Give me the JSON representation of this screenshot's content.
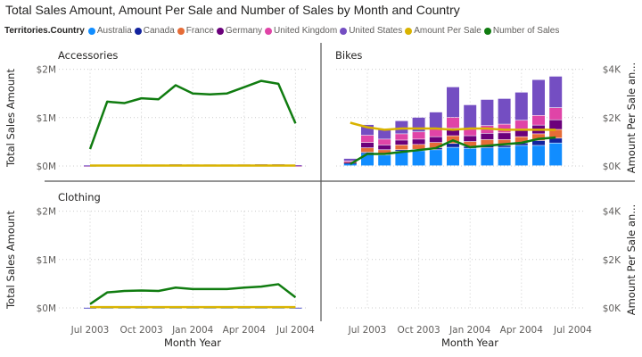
{
  "chart_data": {
    "type": "bar",
    "title": "Total Sales Amount, Amount Per Sale and Number of Sales by Month and Country",
    "legend_title": "Territories.Country",
    "legend_placement": "top-left",
    "legend": [
      {
        "name": "Australia",
        "color": "#118DFF"
      },
      {
        "name": "Canada",
        "color": "#12239E"
      },
      {
        "name": "France",
        "color": "#E66C37"
      },
      {
        "name": "Germany",
        "color": "#6B007B"
      },
      {
        "name": "United Kingdom",
        "color": "#E044A7"
      },
      {
        "name": "United States",
        "color": "#744EC2"
      },
      {
        "name": "Amount Per Sale",
        "color": "#D9B300"
      },
      {
        "name": "Number of Sales",
        "color": "#107C10"
      }
    ],
    "xlabel": "Month Year",
    "ylabel_left": "Total Sales Amount",
    "ylabel_right": "Amount Per Sale an...",
    "x_ticks": [
      "Jul 2003",
      "Oct 2003",
      "Jan 2004",
      "Apr 2004",
      "Jul 2004"
    ],
    "y_left_ticks": [
      "$0M",
      "$1M",
      "$2M"
    ],
    "y_left_range": [
      0,
      2
    ],
    "y_right_ticks": [
      "$0K",
      "$2K",
      "$4K"
    ],
    "y_right_range": [
      0,
      4
    ],
    "grid": true,
    "months": [
      "Jun 2003",
      "Jul 2003",
      "Aug 2003",
      "Sep 2003",
      "Oct 2003",
      "Nov 2003",
      "Dec 2003",
      "Jan 2004",
      "Feb 2004",
      "Mar 2004",
      "Apr 2004",
      "May 2004",
      "Jun 2004",
      "Jul 2004"
    ],
    "panels": [
      {
        "title": "Accessories",
        "months": [
          "Jul 2003",
          "Aug 2003",
          "Sep 2003",
          "Oct 2003",
          "Nov 2003",
          "Dec 2003",
          "Jan 2004",
          "Feb 2004",
          "Mar 2004",
          "Apr 2004",
          "May 2004",
          "Jun 2004",
          "Jul 2004"
        ],
        "sales_by_country_M": {
          "Australia": [
            0.004,
            0.008,
            0.008,
            0.008,
            0.008,
            0.009,
            0.008,
            0.008,
            0.008,
            0.008,
            0.009,
            0.009,
            0.005
          ],
          "Canada": [
            0.001,
            0.002,
            0.002,
            0.002,
            0.002,
            0.002,
            0.002,
            0.002,
            0.002,
            0.002,
            0.002,
            0.002,
            0.001
          ],
          "France": [
            0.001,
            0.002,
            0.002,
            0.002,
            0.002,
            0.003,
            0.002,
            0.002,
            0.002,
            0.002,
            0.003,
            0.003,
            0.001
          ],
          "Germany": [
            0.001,
            0.002,
            0.002,
            0.002,
            0.002,
            0.003,
            0.002,
            0.002,
            0.002,
            0.002,
            0.003,
            0.003,
            0.001
          ],
          "United Kingdom": [
            0.001,
            0.002,
            0.002,
            0.002,
            0.002,
            0.003,
            0.002,
            0.002,
            0.002,
            0.002,
            0.003,
            0.003,
            0.001
          ],
          "United States": [
            0.005,
            0.012,
            0.012,
            0.013,
            0.013,
            0.015,
            0.014,
            0.014,
            0.014,
            0.015,
            0.016,
            0.016,
            0.008
          ]
        },
        "amount_per_sale_K": [
          0.02,
          0.02,
          0.02,
          0.02,
          0.02,
          0.02,
          0.02,
          0.02,
          0.02,
          0.02,
          0.02,
          0.02,
          0.02
        ],
        "number_of_sales": [
          0.35,
          1.33,
          1.3,
          1.4,
          1.38,
          1.67,
          1.5,
          1.48,
          1.5,
          1.63,
          1.76,
          1.7,
          0.88
        ]
      },
      {
        "title": "Bikes",
        "months": [
          "Jun 2003",
          "Jul 2003",
          "Aug 2003",
          "Sep 2003",
          "Oct 2003",
          "Nov 2003",
          "Dec 2003",
          "Jan 2004",
          "Feb 2004",
          "Mar 2004",
          "Apr 2004",
          "May 2004",
          "Jun 2004"
        ],
        "sales_by_country_M": {
          "Australia": [
            0.05,
            0.26,
            0.22,
            0.3,
            0.31,
            0.33,
            0.38,
            0.36,
            0.37,
            0.38,
            0.42,
            0.42,
            0.47
          ],
          "Canada": [
            0.01,
            0.02,
            0.03,
            0.03,
            0.03,
            0.04,
            0.08,
            0.04,
            0.05,
            0.04,
            0.05,
            0.1,
            0.1
          ],
          "France": [
            0.01,
            0.09,
            0.08,
            0.1,
            0.1,
            0.11,
            0.16,
            0.1,
            0.12,
            0.12,
            0.13,
            0.14,
            0.18
          ],
          "Germany": [
            0.01,
            0.11,
            0.1,
            0.1,
            0.11,
            0.12,
            0.16,
            0.12,
            0.13,
            0.14,
            0.16,
            0.18,
            0.2
          ],
          "United Kingdom": [
            0.02,
            0.15,
            0.12,
            0.13,
            0.15,
            0.16,
            0.22,
            0.15,
            0.16,
            0.18,
            0.18,
            0.2,
            0.25
          ],
          "United States": [
            0.05,
            0.22,
            0.21,
            0.27,
            0.3,
            0.35,
            0.63,
            0.49,
            0.54,
            0.53,
            0.58,
            0.74,
            0.65
          ]
        },
        "amount_per_sale_K": [
          1.79,
          1.6,
          1.5,
          1.55,
          1.55,
          1.55,
          1.5,
          1.55,
          1.55,
          1.5,
          1.5,
          1.5,
          1.5
        ],
        "number_of_sales": [
          0.04,
          0.25,
          0.25,
          0.29,
          0.33,
          0.37,
          0.53,
          0.39,
          0.42,
          0.45,
          0.48,
          0.56,
          0.59
        ]
      },
      {
        "title": "Clothing",
        "months": [
          "Jul 2003",
          "Aug 2003",
          "Sep 2003",
          "Oct 2003",
          "Nov 2003",
          "Dec 2003",
          "Jan 2004",
          "Feb 2004",
          "Mar 2004",
          "Apr 2004",
          "May 2004",
          "Jun 2004",
          "Jul 2004"
        ],
        "sales_by_country_M": {
          "Australia": [
            0.001,
            0.002,
            0.002,
            0.002,
            0.002,
            0.002,
            0.002,
            0.002,
            0.002,
            0.002,
            0.002,
            0.002,
            0.001
          ],
          "United States": [
            0.002,
            0.004,
            0.004,
            0.004,
            0.004,
            0.005,
            0.005,
            0.005,
            0.005,
            0.005,
            0.005,
            0.006,
            0.003
          ]
        },
        "amount_per_sale_K": [
          0.03,
          0.03,
          0.03,
          0.03,
          0.03,
          0.03,
          0.03,
          0.03,
          0.03,
          0.03,
          0.03,
          0.03,
          0.03
        ],
        "number_of_sales": [
          0.08,
          0.32,
          0.35,
          0.36,
          0.35,
          0.42,
          0.39,
          0.39,
          0.39,
          0.42,
          0.44,
          0.49,
          0.22
        ]
      },
      {
        "title": ""
      }
    ]
  }
}
